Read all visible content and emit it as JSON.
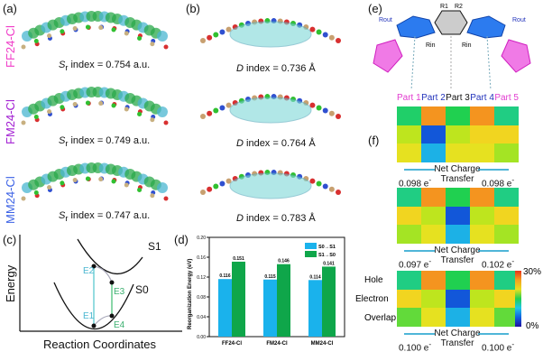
{
  "panels": {
    "a": "(a)",
    "b": "(b)",
    "c": "(c)",
    "d": "(d)",
    "e": "(e)",
    "f": "(f)"
  },
  "molecules": [
    {
      "name": "FF24-Cl",
      "color": "#f03cc8",
      "sr": "S",
      "sr_sub": "r",
      "sr_text": " index = 0.754 a.u.",
      "d": "D",
      "d_text": " index = 0.736 Å"
    },
    {
      "name": "FM24-Cl",
      "color": "#a21ed2",
      "sr": "S",
      "sr_sub": "r",
      "sr_text": " index = 0.749 a.u.",
      "d": "D",
      "d_text": " index = 0.764 Å"
    },
    {
      "name": "MM24-Cl",
      "color": "#3d63e6",
      "sr": "S",
      "sr_sub": "r",
      "sr_text": " index = 0.747 a.u.",
      "d": "D",
      "d_text": " index = 0.783 Å"
    }
  ],
  "energy_diagram": {
    "ylabel": "Energy",
    "xlabel": "Reaction Coordinates",
    "curves": [
      "S1",
      "S0"
    ],
    "points": [
      "E1",
      "E2",
      "E3",
      "E4"
    ]
  },
  "structure": {
    "substituents": [
      "R1",
      "R2",
      "Rout",
      "Rout",
      "Rin",
      "Rin"
    ],
    "parts": [
      {
        "label": "Part 1",
        "color": "#e23cd0"
      },
      {
        "label": "Part 2",
        "color": "#2233bb"
      },
      {
        "label": "Part 3",
        "color": "#111111"
      },
      {
        "label": "Part 4",
        "color": "#2233bb"
      },
      {
        "label": "Part 5",
        "color": "#e23cd0"
      }
    ]
  },
  "heatmaps": {
    "row_labels": [
      "Hole",
      "Electron",
      "Overlap"
    ],
    "net_label_1": "Net Charge",
    "net_label_2": "Transfer",
    "colorbar": {
      "max": "30%",
      "min": "0%"
    },
    "maps": [
      {
        "left": "0.098 e",
        "right": "0.098 e",
        "cells": [
          [
            14,
            26,
            15,
            26,
            13
          ],
          [
            20,
            4,
            20,
            23,
            23
          ],
          [
            22,
            8,
            22,
            22,
            19
          ]
        ]
      },
      {
        "left": "0.097 e",
        "right": "0.102 e",
        "cells": [
          [
            13,
            26,
            15,
            26,
            13
          ],
          [
            23,
            20,
            4,
            20,
            23
          ],
          [
            19,
            22,
            8,
            22,
            19
          ]
        ]
      },
      {
        "left": "0.100 e",
        "right": "0.100 e",
        "cells": [
          [
            13,
            26,
            15,
            26,
            13
          ],
          [
            23,
            20,
            4,
            20,
            23
          ],
          [
            17,
            22,
            8,
            22,
            17
          ]
        ]
      }
    ]
  },
  "chart_data": {
    "type": "bar",
    "title": "",
    "xlabel": "",
    "ylabel": "Reorganization Energy (eV)",
    "categories": [
      "FF24-Cl",
      "FM24-Cl",
      "MM24-Cl"
    ],
    "series": [
      {
        "name": "S0→S1",
        "color": "#1ab2ec",
        "values": [
          0.116,
          0.115,
          0.114
        ],
        "labels": [
          "0.116",
          "0.115",
          "0.114"
        ]
      },
      {
        "name": "S1→S0",
        "color": "#0fa64a",
        "values": [
          0.151,
          0.146,
          0.141
        ],
        "labels": [
          "0.151",
          "0.146",
          "0.141"
        ]
      }
    ],
    "ylim": [
      0,
      0.2
    ],
    "yticks": [
      "0.00",
      "0.04",
      "0.08",
      "0.12",
      "0.16",
      "0.20"
    ],
    "legend": "top-right"
  }
}
